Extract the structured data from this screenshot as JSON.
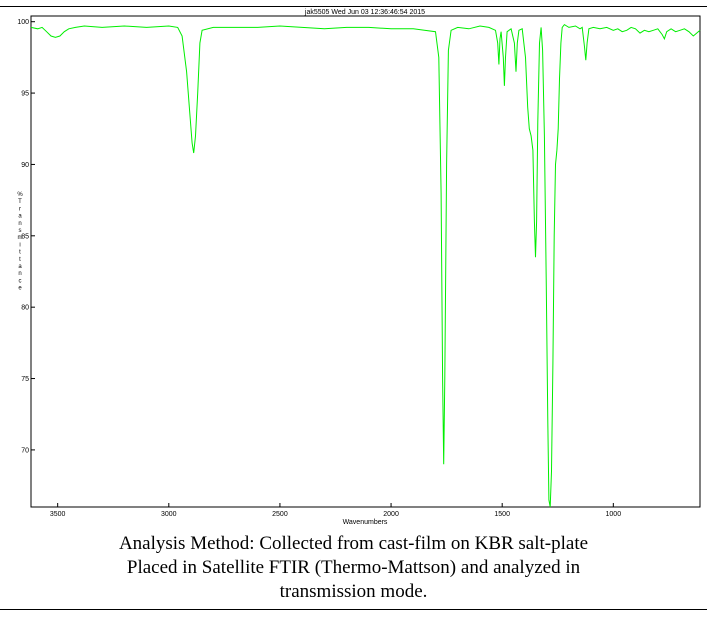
{
  "chart_data": {
    "type": "line",
    "title": "jak5505  Wed Jun 03 12:36:46:54 2015",
    "xlabel": "Wavenumbers",
    "ylabel": "% Transmittance",
    "xlim": [
      3620,
      610
    ],
    "ylim": [
      66,
      100.4
    ],
    "x_reversed": true,
    "grid": false,
    "x_ticks": [
      3500,
      3000,
      2500,
      2000,
      1500,
      1000
    ],
    "y_ticks": [
      100,
      95,
      90,
      85,
      80,
      75,
      70
    ],
    "series": [
      {
        "color": "#00ee00",
        "points": [
          [
            3620,
            99.6
          ],
          [
            3590,
            99.5
          ],
          [
            3570,
            99.6
          ],
          [
            3550,
            99.3
          ],
          [
            3530,
            99.0
          ],
          [
            3510,
            98.9
          ],
          [
            3490,
            99.0
          ],
          [
            3470,
            99.3
          ],
          [
            3450,
            99.5
          ],
          [
            3420,
            99.6
          ],
          [
            3380,
            99.7
          ],
          [
            3300,
            99.6
          ],
          [
            3200,
            99.7
          ],
          [
            3100,
            99.6
          ],
          [
            3000,
            99.7
          ],
          [
            2960,
            99.6
          ],
          [
            2940,
            99.0
          ],
          [
            2920,
            96.5
          ],
          [
            2905,
            93.5
          ],
          [
            2895,
            91.5
          ],
          [
            2888,
            90.8
          ],
          [
            2880,
            92.0
          ],
          [
            2870,
            95.0
          ],
          [
            2860,
            98.5
          ],
          [
            2850,
            99.4
          ],
          [
            2800,
            99.6
          ],
          [
            2700,
            99.6
          ],
          [
            2600,
            99.6
          ],
          [
            2500,
            99.7
          ],
          [
            2400,
            99.6
          ],
          [
            2300,
            99.5
          ],
          [
            2200,
            99.6
          ],
          [
            2100,
            99.6
          ],
          [
            2000,
            99.5
          ],
          [
            1900,
            99.5
          ],
          [
            1850,
            99.4
          ],
          [
            1800,
            99.3
          ],
          [
            1785,
            97.5
          ],
          [
            1775,
            88.0
          ],
          [
            1768,
            75.0
          ],
          [
            1763,
            69.0
          ],
          [
            1758,
            75.0
          ],
          [
            1750,
            90.0
          ],
          [
            1742,
            98.0
          ],
          [
            1730,
            99.4
          ],
          [
            1700,
            99.6
          ],
          [
            1650,
            99.5
          ],
          [
            1600,
            99.7
          ],
          [
            1560,
            99.6
          ],
          [
            1530,
            99.4
          ],
          [
            1520,
            98.5
          ],
          [
            1515,
            97.0
          ],
          [
            1510,
            98.8
          ],
          [
            1505,
            99.3
          ],
          [
            1495,
            97.5
          ],
          [
            1490,
            95.5
          ],
          [
            1485,
            97.5
          ],
          [
            1478,
            99.3
          ],
          [
            1460,
            99.5
          ],
          [
            1445,
            98.5
          ],
          [
            1438,
            96.5
          ],
          [
            1432,
            98.5
          ],
          [
            1425,
            99.4
          ],
          [
            1410,
            99.5
          ],
          [
            1395,
            97.5
          ],
          [
            1385,
            94.0
          ],
          [
            1378,
            92.5
          ],
          [
            1370,
            92.0
          ],
          [
            1362,
            91.0
          ],
          [
            1355,
            86.0
          ],
          [
            1350,
            83.5
          ],
          [
            1345,
            86.0
          ],
          [
            1340,
            93.0
          ],
          [
            1332,
            98.5
          ],
          [
            1325,
            99.6
          ],
          [
            1318,
            98.0
          ],
          [
            1310,
            92.0
          ],
          [
            1302,
            82.0
          ],
          [
            1295,
            72.0
          ],
          [
            1290,
            66.5
          ],
          [
            1284,
            66.0
          ],
          [
            1278,
            68.5
          ],
          [
            1272,
            76.0
          ],
          [
            1266,
            85.0
          ],
          [
            1260,
            90.0
          ],
          [
            1254,
            91.0
          ],
          [
            1248,
            92.5
          ],
          [
            1242,
            96.0
          ],
          [
            1236,
            98.5
          ],
          [
            1230,
            99.6
          ],
          [
            1220,
            99.8
          ],
          [
            1200,
            99.6
          ],
          [
            1170,
            99.7
          ],
          [
            1150,
            99.5
          ],
          [
            1140,
            99.6
          ],
          [
            1130,
            98.3
          ],
          [
            1124,
            97.3
          ],
          [
            1118,
            98.5
          ],
          [
            1110,
            99.5
          ],
          [
            1090,
            99.6
          ],
          [
            1060,
            99.5
          ],
          [
            1030,
            99.6
          ],
          [
            1000,
            99.4
          ],
          [
            980,
            99.5
          ],
          [
            960,
            99.3
          ],
          [
            940,
            99.4
          ],
          [
            920,
            99.6
          ],
          [
            900,
            99.5
          ],
          [
            880,
            99.2
          ],
          [
            860,
            99.4
          ],
          [
            840,
            99.3
          ],
          [
            820,
            99.4
          ],
          [
            800,
            99.5
          ],
          [
            780,
            99.1
          ],
          [
            770,
            98.8
          ],
          [
            760,
            99.3
          ],
          [
            740,
            99.5
          ],
          [
            720,
            99.3
          ],
          [
            700,
            99.4
          ],
          [
            680,
            99.5
          ],
          [
            660,
            99.3
          ],
          [
            640,
            99.0
          ],
          [
            625,
            99.2
          ],
          [
            610,
            99.4
          ]
        ]
      }
    ]
  },
  "caption": {
    "line1": "Analysis Method: Collected from cast-film on KBR salt-plate",
    "line2": "Placed in Satellite FTIR (Thermo-Mattson) and analyzed in",
    "line3": "transmission mode."
  }
}
